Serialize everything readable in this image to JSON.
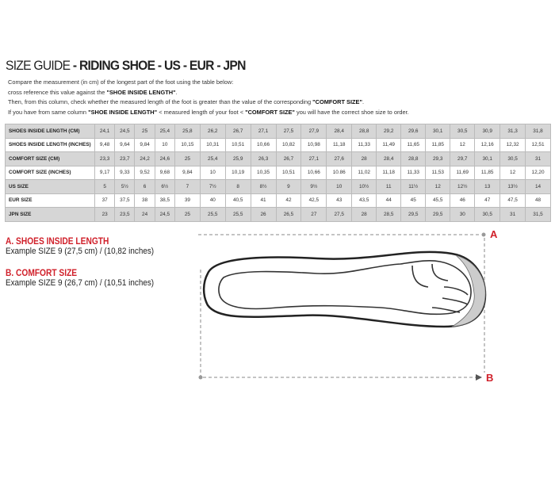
{
  "title": {
    "light": "SIZE GUIDE ",
    "bold": "- RIDING SHOE  - US - EUR - JPN"
  },
  "intro": {
    "line1": "Compare the measurement (in cm) of the longest part of the foot using the table below:",
    "line2_pre": "cross reference this value against the ",
    "line2_bold": "\"SHOE INSIDE LENGTH\"",
    "line2_post": ".",
    "line3_pre": "Then, from this column, check whether the measured length of the foot is greater than the value of the corresponding ",
    "line3_bold": "\"COMFORT SIZE\"",
    "line3_post": ".",
    "line4_pre": "If you have from same column ",
    "line4_bold1": "\"SHOE INSIDE LENGTH\"",
    "line4_mid": " <  measured length of your foot  < ",
    "line4_bold2": "\"COMFORT SIZE\"",
    "line4_post": " you will have the correct shoe size to order."
  },
  "table": [
    {
      "label": "SHOES INSIDE LENGTH (CM)",
      "values": [
        "24,1",
        "24,5",
        "25",
        "25,4",
        "25,8",
        "26,2",
        "26,7",
        "27,1",
        "27,5",
        "27,9",
        "28,4",
        "28,8",
        "29,2",
        "29,6",
        "30,1",
        "30,5",
        "30,9",
        "31,3",
        "31,8"
      ]
    },
    {
      "label": "SHOES INSIDE LENGTH (INCHES)",
      "values": [
        "9,48",
        "9,64",
        "9,84",
        "10",
        "10,15",
        "10,31",
        "10,51",
        "10,66",
        "10,82",
        "10,98",
        "11,18",
        "11,33",
        "11,49",
        "11,65",
        "11,85",
        "12",
        "12,16",
        "12,32",
        "12,51"
      ]
    },
    {
      "label": "COMFORT SIZE (CM)",
      "values": [
        "23,3",
        "23,7",
        "24,2",
        "24,6",
        "25",
        "25,4",
        "25,9",
        "26,3",
        "26,7",
        "27,1",
        "27,6",
        "28",
        "28,4",
        "28,8",
        "29,3",
        "29,7",
        "30,1",
        "30,5",
        "31"
      ]
    },
    {
      "label": "COMFORT SIZE (INCHES)",
      "values": [
        "9,17",
        "9,33",
        "9,52",
        "9,68",
        "9,84",
        "10",
        "10,19",
        "10,35",
        "10,51",
        "10,66",
        "10.86",
        "11,02",
        "11,18",
        "11,33",
        "11,53",
        "11,69",
        "11,85",
        "12",
        "12,20"
      ]
    },
    {
      "label": "US SIZE",
      "values": [
        "5",
        "5½",
        "6",
        "6½",
        "7",
        "7½",
        "8",
        "8½",
        "9",
        "9½",
        "10",
        "10½",
        "11",
        "11½",
        "12",
        "12½",
        "13",
        "13½",
        "14"
      ]
    },
    {
      "label": "EUR SIZE",
      "values": [
        "37",
        "37,5",
        "38",
        "38,5",
        "39",
        "40",
        "40,5",
        "41",
        "42",
        "42,5",
        "43",
        "43,5",
        "44",
        "45",
        "45,5",
        "46",
        "47",
        "47,5",
        "48"
      ]
    },
    {
      "label": "JPN SIZE",
      "values": [
        "23",
        "23,5",
        "24",
        "24,5",
        "25",
        "25,5",
        "25,5",
        "26",
        "26,5",
        "27",
        "27,5",
        "28",
        "28,5",
        "29,5",
        "29,5",
        "30",
        "30,5",
        "31",
        "31,5"
      ]
    }
  ],
  "section_a": {
    "title": "A. SHOES INSIDE LENGTH",
    "example": "Example SIZE 9 (27,5 cm) / (10,82 inches)"
  },
  "section_b": {
    "title": "B. COMFORT SIZE",
    "example": "Example SIZE 9 (26,7 cm) / (10,51 inches)"
  },
  "marker_a": "A",
  "marker_b": "B",
  "colors": {
    "accent": "#d0202a",
    "row_shade": "#d6d6d6"
  }
}
